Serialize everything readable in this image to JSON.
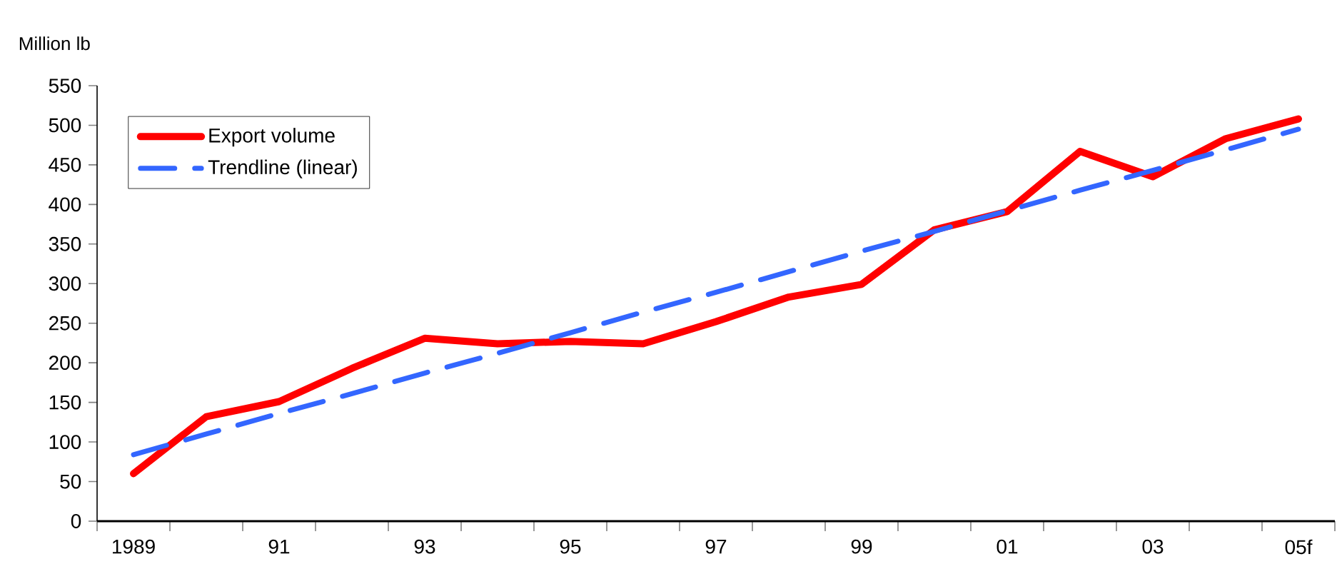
{
  "chart_data": {
    "type": "line",
    "ylabel": "Million lb",
    "categories": [
      "1989",
      null,
      "91",
      null,
      "93",
      null,
      "95",
      null,
      "97",
      null,
      "99",
      null,
      "01",
      null,
      "03",
      null,
      "05f"
    ],
    "series": [
      {
        "name": "Export volume",
        "color": "#ff0000",
        "line_style": "solid",
        "values": [
          60,
          132,
          151,
          193,
          231,
          224,
          227,
          224,
          252,
          283,
          299,
          368,
          391,
          467,
          435,
          483,
          508
        ]
      },
      {
        "name": "Trendline (linear)",
        "color": "#3366ff",
        "line_style": "dashed",
        "values": [
          84,
          110,
          136,
          161,
          187,
          212,
          238,
          264,
          289,
          315,
          341,
          366,
          392,
          418,
          443,
          469,
          495
        ]
      }
    ],
    "ylim": [
      0,
      550
    ],
    "yticks": [
      0,
      50,
      100,
      150,
      200,
      250,
      300,
      350,
      400,
      450,
      500,
      550
    ],
    "legend": "top left",
    "grid": false,
    "marker": "none"
  }
}
